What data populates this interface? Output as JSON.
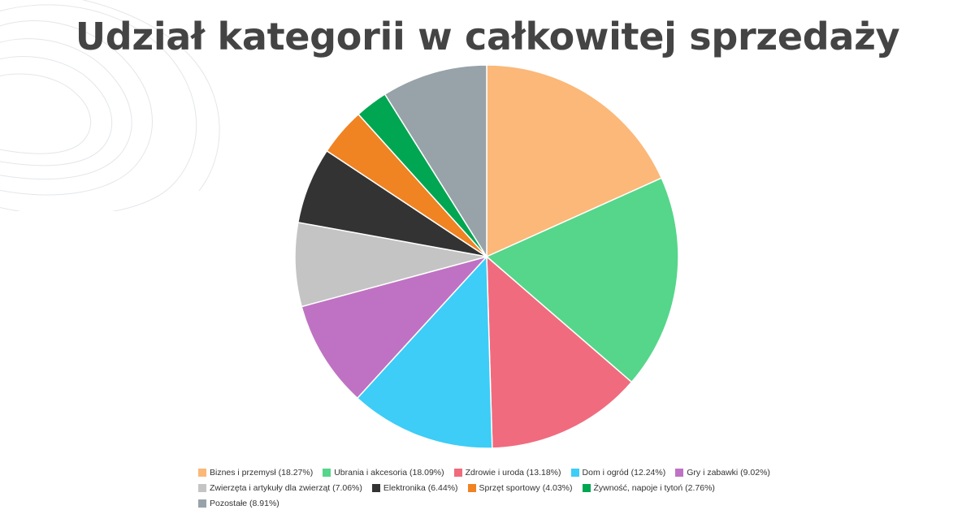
{
  "chart_data": {
    "type": "pie",
    "title": "Udział kategorii w całkowitej sprzedaży",
    "legend_position": "bottom",
    "slices": [
      {
        "label": "Biznes i przemysł",
        "value": 18.27,
        "display": "Biznes i przemysł (18.27%)",
        "color": "#fbb878"
      },
      {
        "label": "Ubrania i akcesoria",
        "value": 18.09,
        "display": "Ubrania i akcesoria (18.09%)",
        "color": "#55d68a"
      },
      {
        "label": "Zdrowie i uroda",
        "value": 13.18,
        "display": "Zdrowie i uroda (13.18%)",
        "color": "#f06b7e"
      },
      {
        "label": "Dom i ogród",
        "value": 12.24,
        "display": "Dom i ogród (12.24%)",
        "color": "#3dcdf6"
      },
      {
        "label": "Gry i zabawki",
        "value": 9.02,
        "display": "Gry i zabawki (9.02%)",
        "color": "#bf72c3"
      },
      {
        "label": "Zwierzęta i artykuły dla zwierząt",
        "value": 7.06,
        "display": "Zwierzęta i artykuły dla zwierząt (7.06%)",
        "color": "#c4c4c4"
      },
      {
        "label": "Elektronika",
        "value": 6.44,
        "display": "Elektronika (6.44%)",
        "color": "#333333"
      },
      {
        "label": "Sprzęt sportowy",
        "value": 4.03,
        "display": "Sprzęt sportowy (4.03%)",
        "color": "#f08322"
      },
      {
        "label": "Żywność, napoje i tytoń",
        "value": 2.76,
        "display": "Żywność, napoje i tytoń (2.76%)",
        "color": "#00a651"
      },
      {
        "label": "Pozostałe",
        "value": 8.91,
        "display": "Pozostałe (8.91%)",
        "color": "#97a3a8"
      }
    ]
  }
}
